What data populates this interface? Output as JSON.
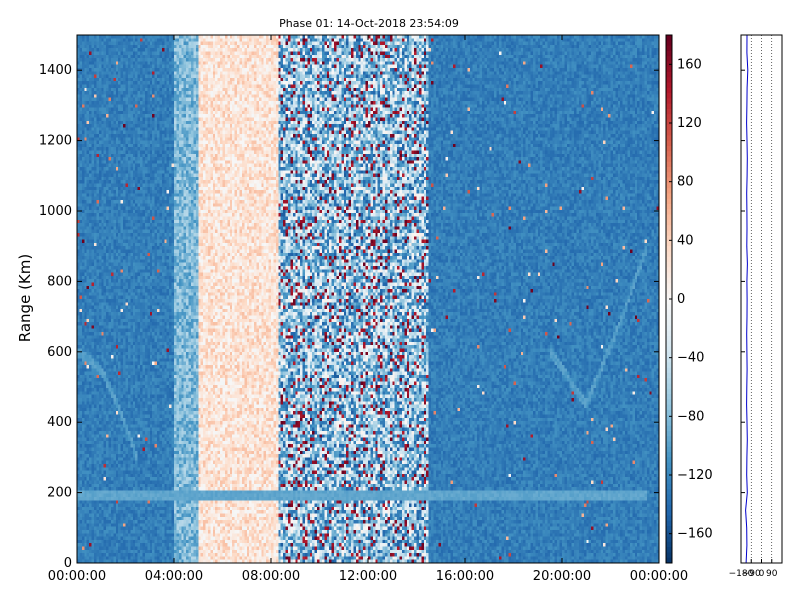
{
  "chart_data": [
    {
      "type": "heatmap",
      "title": "Phase 01: 14-Oct-2018 23:54:09",
      "xlabel": "",
      "ylabel": "Range (Km)",
      "x_ticks": [
        "00:00:00",
        "04:00:00",
        "08:00:00",
        "12:00:00",
        "16:00:00",
        "20:00:00",
        "00:00:00"
      ],
      "x_range_hours": [
        0,
        24
      ],
      "y_ticks": [
        0,
        200,
        400,
        600,
        800,
        1000,
        1200,
        1400
      ],
      "ylim": [
        0,
        1500
      ],
      "colorbar": {
        "colormap": "RdBu_r",
        "range": [
          -180,
          180
        ],
        "ticks": [
          160,
          120,
          80,
          40,
          0,
          -40,
          -80,
          -120,
          -160
        ]
      },
      "time_segments_hours": [
        {
          "from": 0,
          "to": 4,
          "phase_mean": -125,
          "noise": "low"
        },
        {
          "from": 4,
          "to": 5,
          "phase_mean": -80,
          "noise": "medium"
        },
        {
          "from": 5,
          "to": 8.3,
          "phase_mean": 25,
          "noise": "medium"
        },
        {
          "from": 8.3,
          "to": 14.5,
          "phase_mean": -70,
          "noise": "high"
        },
        {
          "from": 14.5,
          "to": 24,
          "phase_mean": -125,
          "noise": "low"
        }
      ],
      "features": [
        {
          "name": "horizontal band",
          "range_km": 190,
          "from_hours": 0,
          "to_hours": 23.5
        },
        {
          "name": "curved trace early",
          "points": [
            [
              0,
              600
            ],
            [
              1.0,
              550
            ],
            [
              1.8,
              430
            ],
            [
              2.5,
              300
            ]
          ]
        },
        {
          "name": "curved trace late",
          "points": [
            [
              19.5,
              600
            ],
            [
              21.0,
              450
            ],
            [
              22.5,
              700
            ],
            [
              23.5,
              900
            ]
          ]
        }
      ]
    },
    {
      "type": "line",
      "title": "",
      "x_ticks": [
        -180,
        -90,
        0,
        90
      ],
      "xlim": [
        -180,
        180
      ],
      "ylim": [
        0,
        1500
      ],
      "series": [
        {
          "range_km": [
            0,
            50,
            100,
            150,
            200,
            250,
            300,
            350,
            400,
            450,
            500,
            550,
            600,
            650,
            700,
            750,
            800,
            850,
            900,
            950,
            1000,
            1050,
            1100,
            1150,
            1200,
            1250,
            1300,
            1350,
            1400,
            1450,
            1500
          ],
          "phase": [
            -135,
            -128,
            -130,
            -140,
            -125,
            -130,
            -128,
            -125,
            -127,
            -131,
            -129,
            -126,
            -128,
            -130,
            -127,
            -126,
            -128,
            -124,
            -129,
            -127,
            -128,
            -130,
            -126,
            -125,
            -127,
            -131,
            -128,
            -126,
            -120,
            -128,
            -127
          ]
        }
      ]
    }
  ]
}
